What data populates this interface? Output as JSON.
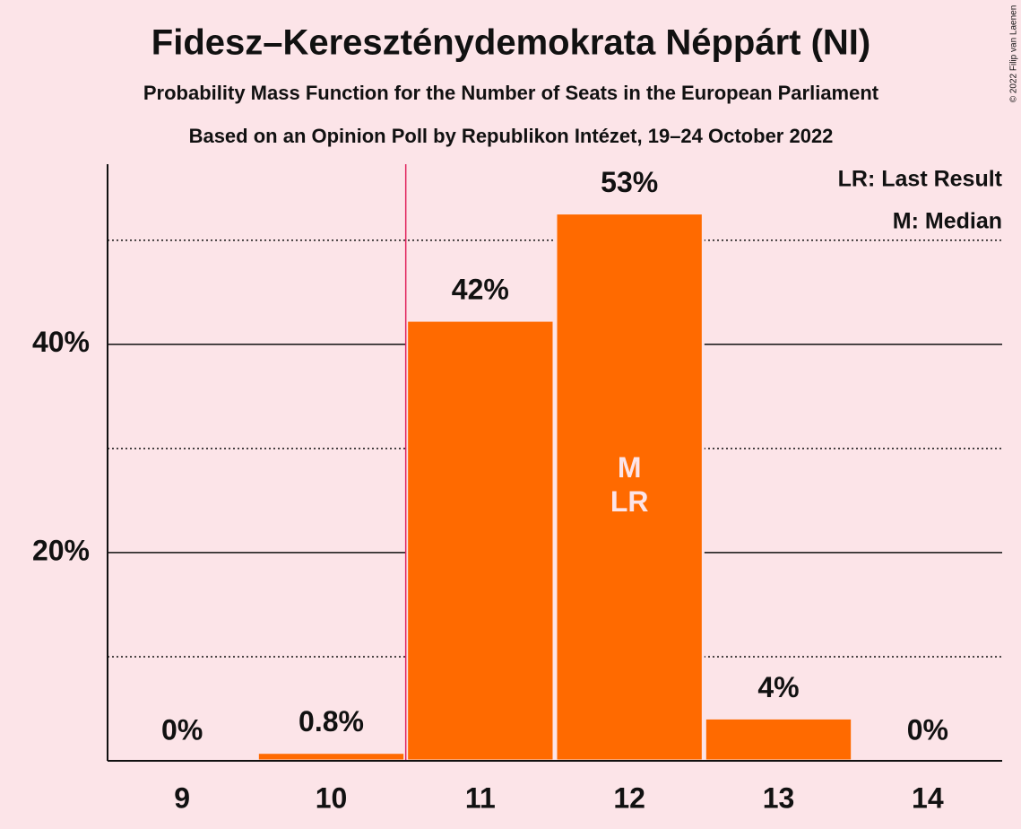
{
  "chart_data": {
    "type": "bar",
    "title": "Fidesz–Kereszténydemokrata Néppárt (NI)",
    "subtitle": "Probability Mass Function for the Number of Seats in the European Parliament",
    "subtitle2": "Based on an Opinion Poll by Republikon Intézet, 19–24 October 2022",
    "copyright": "© 2022 Filip van Laenen",
    "categories": [
      "9",
      "10",
      "11",
      "12",
      "13",
      "14"
    ],
    "values": [
      0,
      0.8,
      42.3,
      52.6,
      4.1,
      0
    ],
    "value_labels": [
      "0%",
      "0.8%",
      "42%",
      "53%",
      "4%",
      "0%"
    ],
    "color": "#ff6a00",
    "ylim": [
      0,
      57.3
    ],
    "yticks": [
      {
        "value": 20,
        "label": "20%"
      },
      {
        "value": 40,
        "label": "40%"
      }
    ],
    "minor_yticks": [
      10,
      30,
      50
    ],
    "grid": true,
    "bar_annotations": [
      {
        "index": 3,
        "lines": [
          "M",
          "LR"
        ]
      }
    ],
    "legend": [
      "LR: Last Result",
      "M: Median"
    ],
    "vertical_line": {
      "x": 10.5,
      "color": "#e0245e"
    }
  }
}
